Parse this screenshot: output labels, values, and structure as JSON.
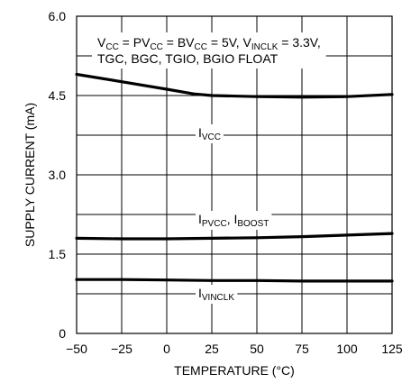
{
  "chart_data": {
    "type": "line",
    "title": "",
    "xlabel": "TEMPERATURE (°C)",
    "ylabel": "SUPPLY CURRENT (mA)",
    "xlim": [
      -50,
      125
    ],
    "ylim": [
      0,
      6.0
    ],
    "x_ticks": [
      "−50",
      "−25",
      "0",
      "25",
      "50",
      "75",
      "100",
      "125"
    ],
    "x_tick_values": [
      -50,
      -25,
      0,
      25,
      50,
      75,
      100,
      125
    ],
    "y_ticks": [
      "0",
      "1.5",
      "3.0",
      "4.5",
      "6.0"
    ],
    "y_tick_values": [
      0,
      1.5,
      3.0,
      4.5,
      6.0
    ],
    "grid": true,
    "annotation": {
      "line1": [
        {
          "t": "V"
        },
        {
          "t": "CC",
          "sub": true
        },
        {
          "t": " = PV"
        },
        {
          "t": "CC",
          "sub": true
        },
        {
          "t": " = BV"
        },
        {
          "t": "CC",
          "sub": true
        },
        {
          "t": " = 5V, V"
        },
        {
          "t": "INCLK",
          "sub": true
        },
        {
          "t": " = 3.3V,"
        }
      ],
      "line2": "TGC, BGC, TGIO, BGIO FLOAT"
    },
    "series_labels": {
      "vcc": [
        {
          "t": "I"
        },
        {
          "t": "VCC",
          "sub": true
        }
      ],
      "pvcc": [
        {
          "t": "I"
        },
        {
          "t": "PVCC",
          "sub": true
        },
        {
          "t": ", I"
        },
        {
          "t": "BOOST",
          "sub": true
        }
      ],
      "vinclk": [
        {
          "t": "I"
        },
        {
          "t": "VINCLK",
          "sub": true
        }
      ]
    },
    "series": [
      {
        "id": "vcc",
        "x": [
          -50,
          -25,
          0,
          15,
          25,
          50,
          75,
          100,
          125
        ],
        "y": [
          4.9,
          4.76,
          4.62,
          4.53,
          4.5,
          4.48,
          4.47,
          4.48,
          4.52
        ]
      },
      {
        "id": "pvcc",
        "x": [
          -50,
          -25,
          0,
          25,
          50,
          75,
          100,
          125
        ],
        "y": [
          1.8,
          1.79,
          1.79,
          1.8,
          1.81,
          1.83,
          1.86,
          1.89
        ]
      },
      {
        "id": "vinclk",
        "x": [
          -50,
          -25,
          0,
          25,
          50,
          75,
          100,
          125
        ],
        "y": [
          1.02,
          1.02,
          1.01,
          1.0,
          1.0,
          0.99,
          0.99,
          0.99
        ]
      }
    ]
  }
}
